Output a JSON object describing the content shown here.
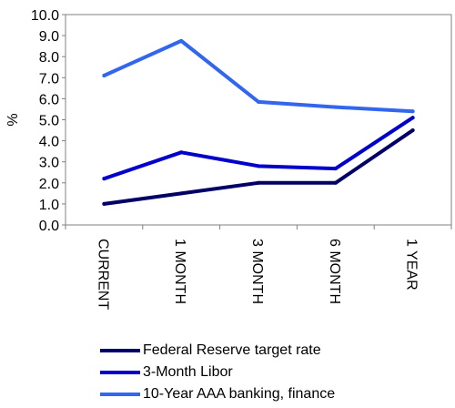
{
  "chart_data": {
    "type": "line",
    "title": "",
    "xlabel": "",
    "ylabel": "%",
    "ylim": [
      0,
      10
    ],
    "yticks": [
      "0.0",
      "1.0",
      "2.0",
      "3.0",
      "4.0",
      "5.0",
      "6.0",
      "7.0",
      "8.0",
      "9.0",
      "10.0"
    ],
    "categories": [
      "CURRENT",
      "1 MONTH",
      "3 MONTH",
      "6 MONTH",
      "1 YEAR"
    ],
    "grid": false,
    "legend_position": "bottom",
    "series": [
      {
        "name": "Federal Reserve target rate",
        "color": "#000066",
        "values": [
          1.0,
          1.5,
          2.0,
          2.0,
          4.5
        ]
      },
      {
        "name": "3-Month Libor",
        "color": "#0000CC",
        "values": [
          2.2,
          3.45,
          2.8,
          2.68,
          5.1
        ]
      },
      {
        "name": "10-Year AAA banking, finance",
        "color": "#3366EE",
        "values": [
          7.1,
          8.75,
          5.85,
          5.6,
          5.4
        ]
      }
    ]
  }
}
